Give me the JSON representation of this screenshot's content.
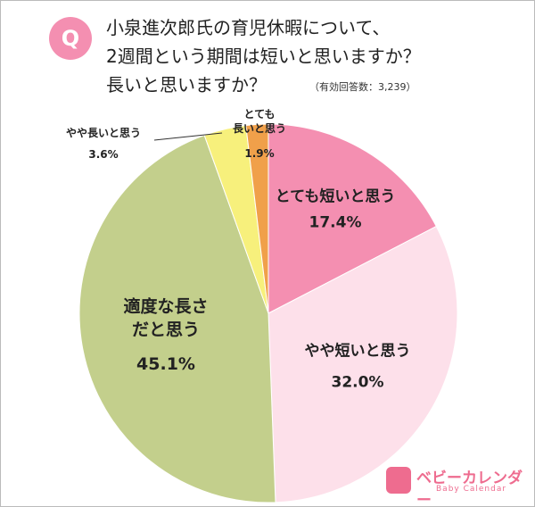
{
  "badge": "Q",
  "logo": {
    "name": "ベビーカレンダー",
    "sub": "Baby Calendar"
  },
  "chart_data": {
    "type": "pie",
    "title": "小泉進次郎氏の育児休暇について、\n2週間という期間は短いと思いますか？\n長いと思いますか？",
    "subtitle": "（有効回答数：3,239）",
    "categories": [
      "とても短いと思う",
      "やや短いと思う",
      "適度な長さ\nだと思う",
      "やや長いと思う",
      "とても\n長いと思う"
    ],
    "values": [
      17.4,
      32.0,
      45.1,
      3.6,
      1.9
    ],
    "value_labels": [
      "17.4%",
      "32.0%",
      "45.1%",
      "3.6%",
      "1.9%"
    ],
    "colors": [
      "#f48fb1",
      "#fde0ea",
      "#c3cf8c",
      "#f7f07c",
      "#f0a04a"
    ]
  }
}
